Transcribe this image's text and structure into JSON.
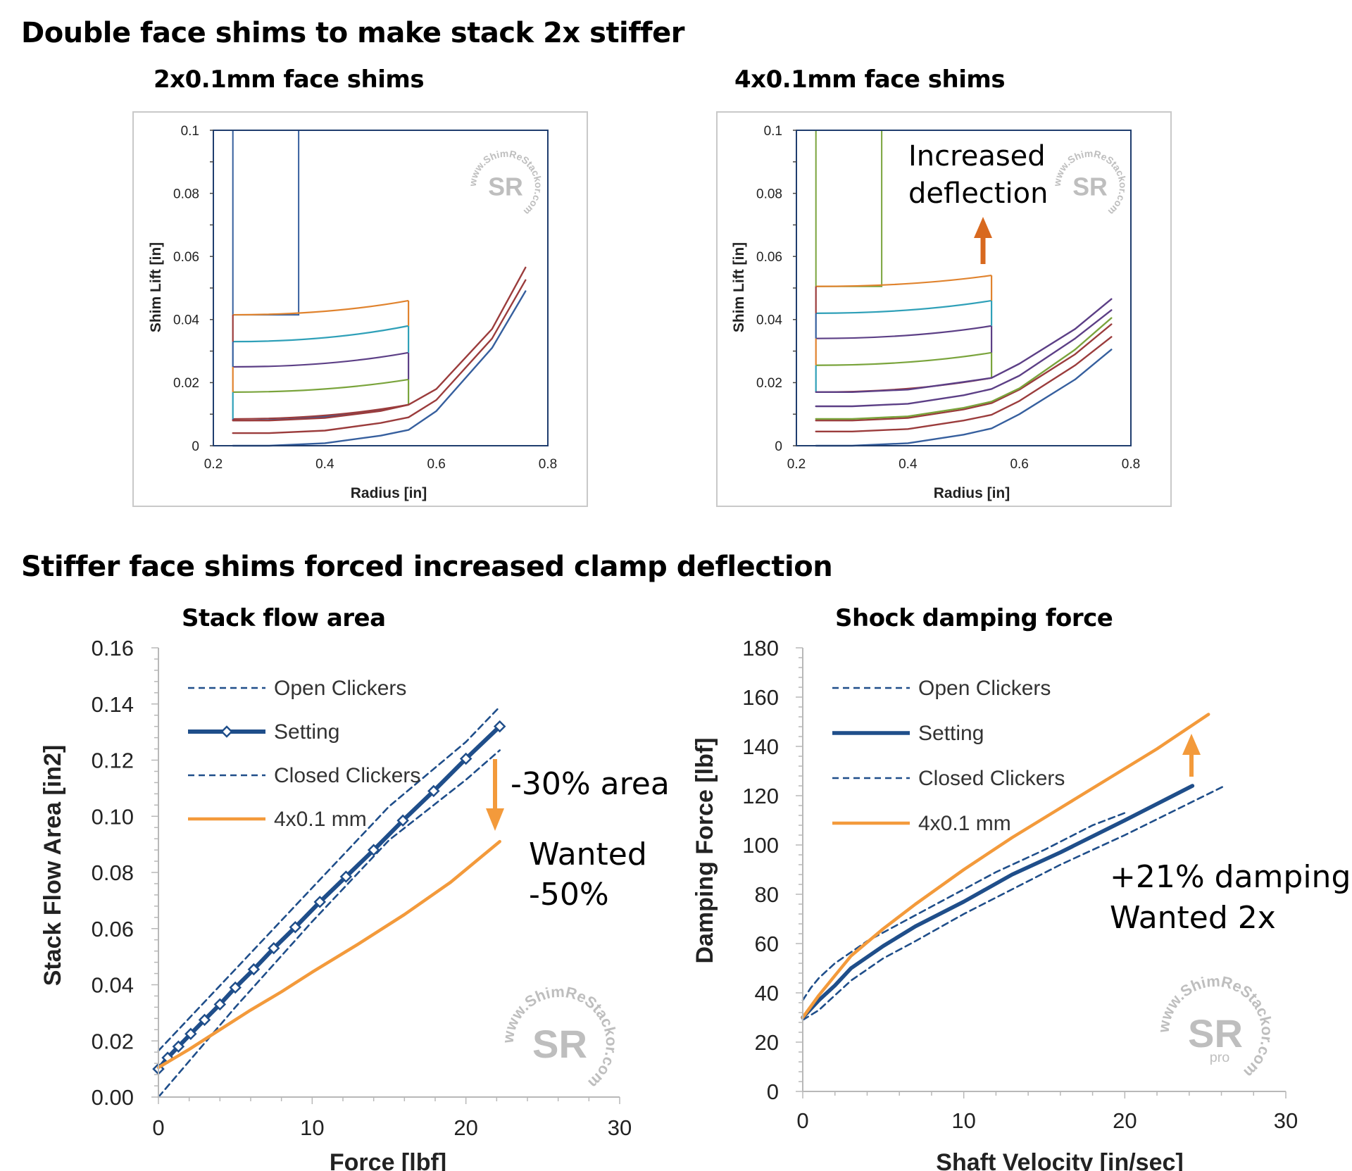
{
  "headings": {
    "top": "Double face shims to make stack 2x stiffer",
    "bottom": "Stiffer face shims forced increased clamp deflection"
  },
  "colors": {
    "navy": "#1f4e8a",
    "orange": "#f39a3b",
    "arrow_orange": "#d8691f",
    "shim_colors": [
      "#365f9e",
      "#9b3c3c",
      "#7aa43c",
      "#5c3f86",
      "#2fa0b8",
      "#e0832e"
    ]
  },
  "watermark": "www.ShimReStackor.com",
  "watermark_pro": "pro",
  "chart_data": [
    {
      "id": "shim-2x",
      "type": "line",
      "title": "2x0.1mm face shims",
      "xlabel": "Radius [in]",
      "ylabel": "Shim Lift [in]",
      "xlim": [
        0.2,
        0.8
      ],
      "ylim": [
        0,
        0.1
      ],
      "x_ticks": [
        "0.2",
        "0.4",
        "0.6",
        "0.8"
      ],
      "y_ticks": [
        "0",
        "0.02",
        "0.04",
        "0.06",
        "0.08",
        "0.1"
      ],
      "grid": false,
      "clamp": {
        "x": [
          0.235,
          0.353
        ],
        "top": 0.1,
        "lift": 0.0415
      },
      "face_stack": {
        "x_end": 0.55,
        "bottom_center": 0.008,
        "bottom_end": 0.013,
        "tops_center": [
          0.0085,
          0.017,
          0.025,
          0.033,
          0.0415
        ],
        "tops_end": [
          0.013,
          0.021,
          0.0295,
          0.038,
          0.046
        ]
      },
      "series": [
        {
          "name": "shim 1",
          "color": "#365f9e",
          "x": [
            0.235,
            0.3,
            0.4,
            0.5,
            0.55,
            0.6,
            0.7,
            0.76
          ],
          "y": [
            0,
            0,
            0.0008,
            0.0032,
            0.005,
            0.011,
            0.031,
            0.049
          ]
        },
        {
          "name": "shim 2",
          "color": "#9b3c3c",
          "x": [
            0.235,
            0.3,
            0.4,
            0.5,
            0.55,
            0.6,
            0.7,
            0.76
          ],
          "y": [
            0.004,
            0.004,
            0.0048,
            0.0072,
            0.009,
            0.0145,
            0.034,
            0.0525
          ]
        },
        {
          "name": "shim 3",
          "color": "#9b3c3c",
          "x": [
            0.235,
            0.3,
            0.4,
            0.5,
            0.55,
            0.6,
            0.7,
            0.76
          ],
          "y": [
            0.008,
            0.008,
            0.0088,
            0.011,
            0.013,
            0.018,
            0.037,
            0.0565
          ]
        }
      ]
    },
    {
      "id": "shim-4x",
      "type": "line",
      "title": "4x0.1mm face shims",
      "xlabel": "Radius [in]",
      "ylabel": "Shim Lift [in]",
      "xlim": [
        0.2,
        0.8
      ],
      "ylim": [
        0,
        0.1
      ],
      "x_ticks": [
        "0.2",
        "0.4",
        "0.6",
        "0.8"
      ],
      "y_ticks": [
        "0",
        "0.02",
        "0.04",
        "0.06",
        "0.08",
        "0.1"
      ],
      "grid": false,
      "annotation": "Increased deflection",
      "clamp": {
        "x": [
          0.235,
          0.353
        ],
        "top": 0.1,
        "lift": 0.0505
      },
      "face_stack": {
        "x_end": 0.55,
        "bottom_center": 0.017,
        "bottom_end": 0.0215,
        "tops_center": [
          0.0255,
          0.034,
          0.042,
          0.0505
        ],
        "tops_end": [
          0.0295,
          0.038,
          0.046,
          0.054
        ]
      },
      "series": [
        {
          "name": "shim 1",
          "color": "#365f9e",
          "x": [
            0.235,
            0.3,
            0.4,
            0.5,
            0.55,
            0.6,
            0.7,
            0.765
          ],
          "y": [
            0,
            0,
            0.0008,
            0.0035,
            0.0055,
            0.01,
            0.021,
            0.0305
          ]
        },
        {
          "name": "shim 2",
          "color": "#9b3c3c",
          "x": [
            0.235,
            0.3,
            0.4,
            0.5,
            0.55,
            0.6,
            0.7,
            0.765
          ],
          "y": [
            0.0045,
            0.0045,
            0.0053,
            0.008,
            0.0098,
            0.0142,
            0.0255,
            0.0345
          ]
        },
        {
          "name": "shim 3",
          "color": "#9b3c3c",
          "x": [
            0.235,
            0.3,
            0.4,
            0.5,
            0.55,
            0.6,
            0.7,
            0.765
          ],
          "y": [
            0.008,
            0.008,
            0.0088,
            0.0115,
            0.0135,
            0.0178,
            0.029,
            0.0385
          ]
        },
        {
          "name": "shim 4",
          "color": "#7aa43c",
          "x": [
            0.235,
            0.3,
            0.4,
            0.5,
            0.55,
            0.6,
            0.7,
            0.765
          ],
          "y": [
            0.0085,
            0.0085,
            0.0093,
            0.012,
            0.014,
            0.0182,
            0.0305,
            0.0405
          ]
        },
        {
          "name": "shim 5",
          "color": "#5c3f86",
          "x": [
            0.235,
            0.3,
            0.4,
            0.5,
            0.55,
            0.6,
            0.7,
            0.765
          ],
          "y": [
            0.0125,
            0.0125,
            0.0133,
            0.016,
            0.018,
            0.0222,
            0.034,
            0.043
          ]
        },
        {
          "name": "shim 6",
          "color": "#5c3f86",
          "x": [
            0.235,
            0.3,
            0.4,
            0.5,
            0.55,
            0.6,
            0.7,
            0.765
          ],
          "y": [
            0.017,
            0.017,
            0.0178,
            0.0202,
            0.0215,
            0.026,
            0.037,
            0.0465
          ]
        }
      ]
    },
    {
      "id": "flow-area",
      "type": "line",
      "title": "Stack flow area",
      "xlabel": "Force [lbf]",
      "ylabel": "Stack Flow Area [in2]",
      "xlim": [
        0,
        30
      ],
      "ylim": [
        0,
        0.16
      ],
      "x_ticks": [
        "0",
        "10",
        "20",
        "30"
      ],
      "y_ticks": [
        "0.00",
        "0.02",
        "0.04",
        "0.06",
        "0.08",
        "0.10",
        "0.12",
        "0.14",
        "0.16"
      ],
      "grid": false,
      "legend": "top-left",
      "series": [
        {
          "name": "Open Clickers",
          "style": "dashed",
          "color": "#1f4e8a",
          "x": [
            0,
            5,
            10,
            15,
            20,
            22.2
          ],
          "y": [
            0.0165,
            0.0455,
            0.0745,
            0.1035,
            0.1265,
            0.139
          ]
        },
        {
          "name": "Setting",
          "style": "marker",
          "color": "#1f4e8a",
          "x": [
            0,
            0.6,
            1.3,
            2.1,
            3,
            4,
            5,
            6.2,
            7.5,
            8.9,
            10.5,
            12.2,
            14,
            15.9,
            17.9,
            20,
            22.2
          ],
          "y": [
            0.01,
            0.014,
            0.018,
            0.0225,
            0.0275,
            0.033,
            0.039,
            0.0455,
            0.053,
            0.0605,
            0.0695,
            0.0785,
            0.088,
            0.0985,
            0.109,
            0.1205,
            0.132
          ]
        },
        {
          "name": "Closed Clickers",
          "style": "dashed",
          "color": "#1f4e8a",
          "x": [
            0,
            5,
            10,
            15,
            20,
            22.2
          ],
          "y": [
            0,
            0.032,
            0.0625,
            0.0915,
            0.113,
            0.1235
          ]
        },
        {
          "name": "4x0.1 mm",
          "style": "solid",
          "color": "#f39a3b",
          "x": [
            0,
            2,
            4,
            6,
            8,
            10,
            13,
            16,
            19,
            22.2
          ],
          "y": [
            0.0105,
            0.017,
            0.024,
            0.031,
            0.0375,
            0.0445,
            0.0545,
            0.065,
            0.0765,
            0.091
          ]
        }
      ],
      "annotations": [
        "-30% area",
        "Wanted",
        "-50%"
      ]
    },
    {
      "id": "damping-force",
      "type": "line",
      "title": "Shock damping force",
      "xlabel": "Shaft Velocity [in/sec]",
      "ylabel": "Damping Force [lbf]",
      "xlim": [
        0,
        30
      ],
      "ylim": [
        0,
        180
      ],
      "x_ticks": [
        "0",
        "10",
        "20",
        "30"
      ],
      "y_ticks": [
        "0",
        "20",
        "40",
        "60",
        "80",
        "100",
        "120",
        "140",
        "160",
        "180"
      ],
      "grid": false,
      "legend": "top-left",
      "series": [
        {
          "name": "Open Clickers",
          "style": "dashed",
          "color": "#1f4e8a",
          "x": [
            0,
            0.5,
            1,
            2,
            4,
            6,
            8,
            10,
            12,
            15,
            18,
            20
          ],
          "y": [
            37,
            42,
            46,
            52,
            61,
            68,
            75,
            82,
            89,
            98,
            108,
            113
          ]
        },
        {
          "name": "Setting",
          "style": "solid",
          "color": "#1f4e8a",
          "x": [
            0,
            1,
            2,
            3,
            5,
            7,
            10,
            13,
            16,
            20,
            24.2
          ],
          "y": [
            30,
            37,
            43,
            50,
            59,
            67,
            77,
            88,
            97,
            110,
            124
          ]
        },
        {
          "name": "Closed Clickers",
          "style": "dashed",
          "color": "#1f4e8a",
          "x": [
            0,
            1,
            2,
            3,
            5,
            7,
            10,
            13,
            16,
            20,
            26.2
          ],
          "y": [
            29,
            33,
            39,
            45,
            54,
            61,
            72,
            82,
            92,
            104,
            124
          ]
        },
        {
          "name": "4x0.1 mm",
          "style": "solid",
          "color": "#f39a3b",
          "x": [
            0,
            1,
            2,
            3,
            5,
            7,
            10,
            13,
            16,
            19,
            22,
            25.2
          ],
          "y": [
            30,
            39,
            47,
            55,
            66,
            76,
            90,
            103,
            115,
            127,
            139,
            153
          ]
        }
      ],
      "annotations": [
        "+21% damping",
        "Wanted 2x"
      ]
    }
  ]
}
